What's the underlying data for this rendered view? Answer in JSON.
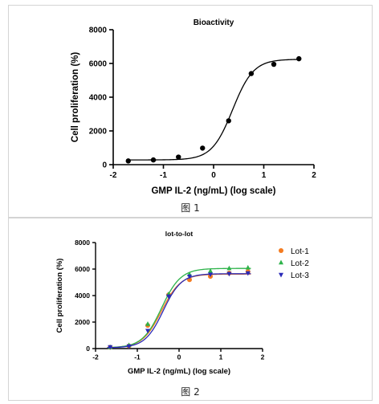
{
  "figures": [
    {
      "caption": "图 1",
      "chart_data": {
        "type": "scatter",
        "title": "Bioactivity",
        "xlabel": "GMP IL-2 (ng/mL) (log scale)",
        "ylabel": "Cell proliferation (%)",
        "xlim": [
          -2,
          2
        ],
        "ylim": [
          0,
          8000
        ],
        "xticks": [
          -2,
          -1,
          0,
          1,
          2
        ],
        "yticks": [
          0,
          2000,
          4000,
          6000,
          8000
        ],
        "grid": false,
        "series": [
          {
            "marker": "circle",
            "color": "#000000",
            "x": [
              -1.7,
              -1.2,
              -0.7,
              -0.22,
              0.3,
              0.75,
              1.2,
              1.7
            ],
            "y": [
              220,
              280,
              450,
              980,
              2600,
              5400,
              5950,
              6280
            ]
          }
        ],
        "fit_curve": {
          "bottom": 280,
          "top": 6250,
          "log_ec50": 0.38,
          "hill": 2.1,
          "color": "#000000"
        }
      }
    },
    {
      "caption": "图 2",
      "chart_data": {
        "type": "scatter",
        "title": "lot-to-lot",
        "xlabel": "GMP IL-2 (ng/mL) (log scale)",
        "ylabel": "Cell proliferation (%)",
        "xlim": [
          -2,
          2
        ],
        "ylim": [
          0,
          8000
        ],
        "xticks": [
          -2,
          -1,
          0,
          1,
          2
        ],
        "yticks": [
          0,
          2000,
          4000,
          6000,
          8000
        ],
        "grid": false,
        "legend_position": "right",
        "series": [
          {
            "name": "Lot-1",
            "marker": "circle",
            "color": "#f47b20",
            "x": [
              -1.65,
              -1.2,
              -0.75,
              -0.25,
              0.25,
              0.75,
              1.2,
              1.65
            ],
            "y": [
              100,
              200,
              1750,
              4050,
              5200,
              5450,
              5700,
              5800
            ],
            "fit_curve": {
              "bottom": 60,
              "top": 5620,
              "log_ec50": -0.42,
              "hill": 1.9
            }
          },
          {
            "name": "Lot-2",
            "marker": "triangle-up",
            "color": "#2db34a",
            "x": [
              -1.65,
              -1.2,
              -0.75,
              -0.25,
              0.25,
              0.75,
              1.2,
              1.65
            ],
            "y": [
              100,
              250,
              1850,
              4100,
              5600,
              5850,
              6050,
              6100
            ],
            "fit_curve": {
              "bottom": 60,
              "top": 6050,
              "log_ec50": -0.42,
              "hill": 1.9
            }
          },
          {
            "name": "Lot-3",
            "marker": "triangle-down",
            "color": "#2a2ab8",
            "x": [
              -1.65,
              -1.2,
              -0.75,
              -0.25,
              0.25,
              0.75,
              1.2,
              1.65
            ],
            "y": [
              120,
              180,
              1350,
              3950,
              5450,
              5600,
              5650,
              5700
            ],
            "fit_curve": {
              "bottom": 60,
              "top": 5650,
              "log_ec50": -0.38,
              "hill": 2.0
            }
          }
        ]
      }
    }
  ]
}
